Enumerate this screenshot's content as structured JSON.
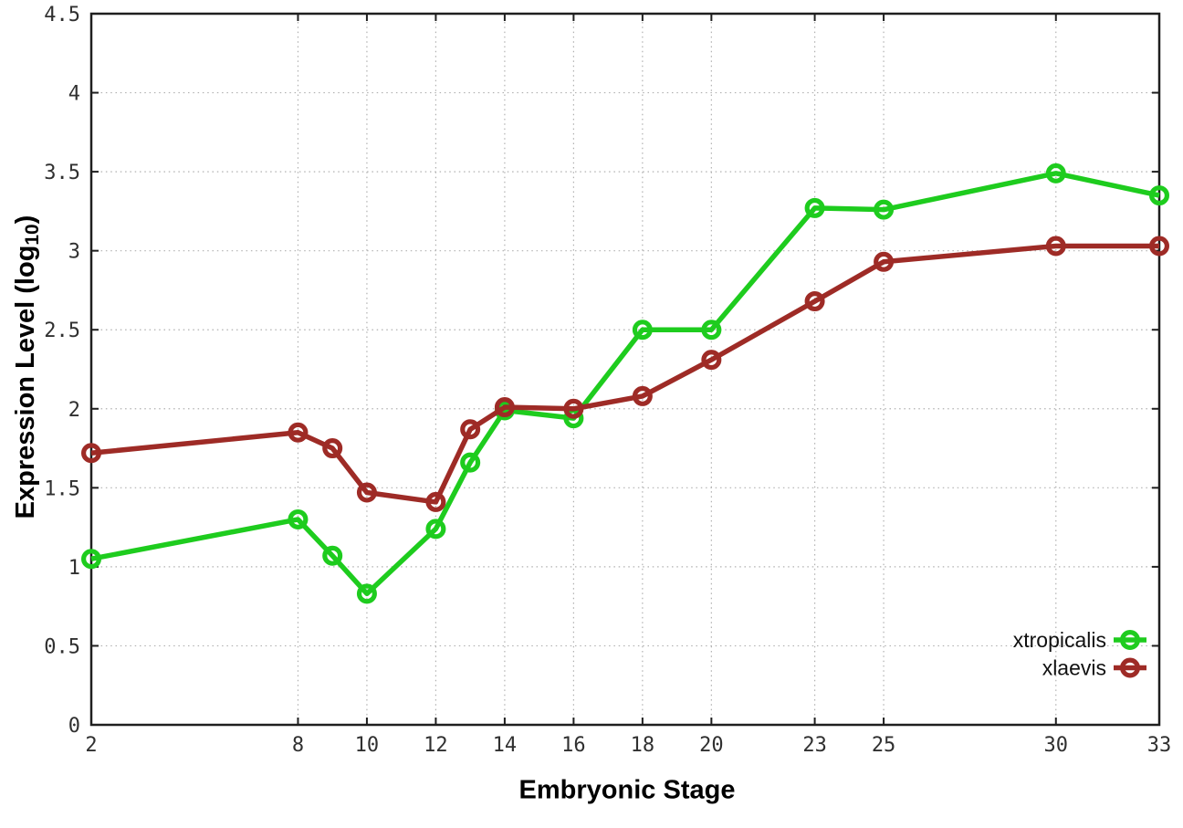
{
  "chart_data": {
    "type": "line",
    "title": "",
    "xlabel": "Embryonic Stage",
    "ylabel": "Expression Level (log10)",
    "ylabel_parts": {
      "prefix": "Expression Level (log",
      "subscript": "10",
      "suffix": ")"
    },
    "x": [
      2,
      8,
      9,
      10,
      12,
      13,
      14,
      16,
      18,
      20,
      23,
      25,
      30,
      33
    ],
    "xticks": [
      2,
      8,
      10,
      12,
      14,
      16,
      18,
      20,
      23,
      25,
      30,
      33
    ],
    "yticks": [
      0,
      0.5,
      1,
      1.5,
      2,
      2.5,
      3,
      3.5,
      4,
      4.5
    ],
    "xlim": [
      2,
      33
    ],
    "ylim": [
      0,
      4.5
    ],
    "grid": true,
    "legend_position": "inside-bottom-right",
    "series": [
      {
        "name": "xtropicalis",
        "color": "#1ecc1e",
        "values": [
          1.05,
          1.3,
          1.07,
          0.83,
          1.24,
          1.66,
          1.99,
          1.94,
          2.5,
          2.5,
          3.27,
          3.26,
          3.49,
          3.35
        ]
      },
      {
        "name": "xlaevis",
        "color": "#9e2b26",
        "values": [
          1.72,
          1.85,
          1.75,
          1.47,
          1.41,
          1.87,
          2.01,
          2.0,
          2.08,
          2.31,
          2.68,
          2.93,
          3.03,
          3.03
        ]
      }
    ],
    "style": {
      "background": "#ffffff",
      "border_color": "#1f1f1f",
      "grid_color": "#b0b0b0",
      "tick_label_color": "#303030",
      "line_width": 5.5,
      "marker_radius": 8.4
    }
  }
}
